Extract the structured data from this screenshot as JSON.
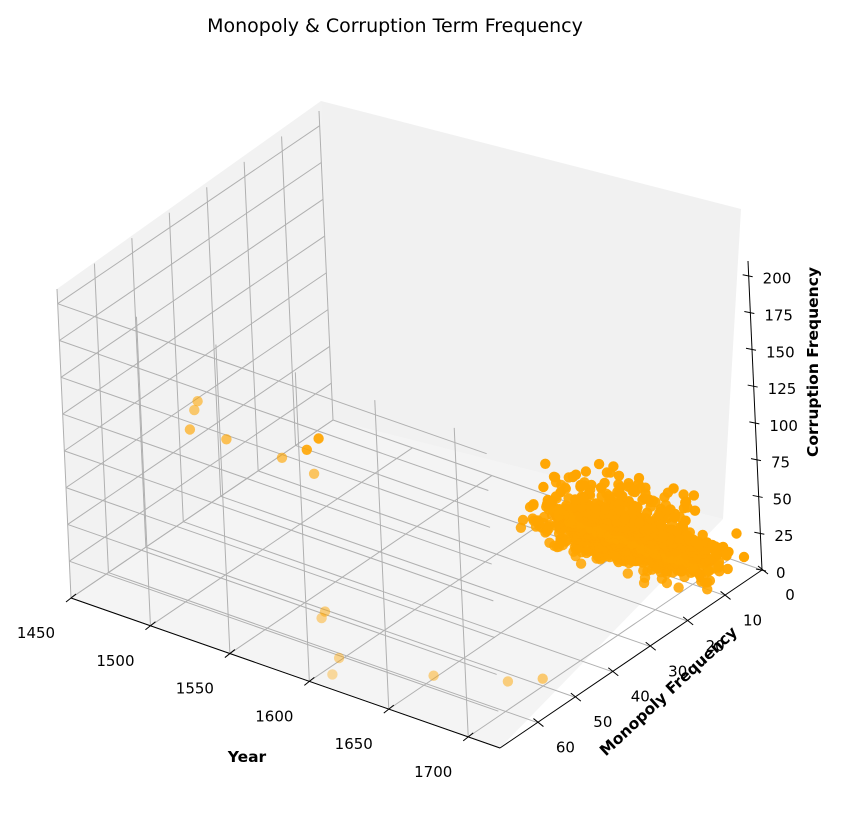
{
  "chart_data": {
    "type": "scatter",
    "projection": "3d",
    "title": "Monopoly & Corruption Term Frequency",
    "xlabel": "Year",
    "ylabel": "Monopoly Frequency",
    "zlabel": "Corruption Frequency",
    "xlim": [
      1450,
      1720
    ],
    "ylim": [
      0,
      70
    ],
    "zlim": [
      0,
      210
    ],
    "x_ticks": [
      1450,
      1500,
      1550,
      1600,
      1650,
      1700
    ],
    "y_ticks": [
      0,
      10,
      20,
      30,
      40,
      50,
      60
    ],
    "z_ticks": [
      0,
      25,
      50,
      75,
      100,
      125,
      150,
      175,
      200
    ],
    "grid": true,
    "marker_color": "#ffa500",
    "notable_points": [
      {
        "x": 1475,
        "y": 45,
        "z": 100
      },
      {
        "x": 1480,
        "y": 48,
        "z": 101
      },
      {
        "x": 1452,
        "y": 38,
        "z": 60
      },
      {
        "x": 1475,
        "y": 38,
        "z": 62
      },
      {
        "x": 1515,
        "y": 40,
        "z": 68
      },
      {
        "x": 1540,
        "y": 42,
        "z": 70
      },
      {
        "x": 1460,
        "y": 8,
        "z": 5
      },
      {
        "x": 1462,
        "y": 12,
        "z": 5
      },
      {
        "x": 1600,
        "y": 62,
        "z": 2
      },
      {
        "x": 1610,
        "y": 68,
        "z": 5
      },
      {
        "x": 1690,
        "y": 55,
        "z": 8
      },
      {
        "x": 1700,
        "y": 50,
        "z": 5
      },
      {
        "x": 1650,
        "y": 58,
        "z": 2
      },
      {
        "x": 1575,
        "y": 55,
        "z": 12
      },
      {
        "x": 1585,
        "y": 60,
        "z": 20
      }
    ],
    "bulk_distribution": {
      "n_points": 1400,
      "x_range": [
        1500,
        1710
      ],
      "x_mode": 1650,
      "y_range": [
        0,
        35
      ],
      "z_range": [
        0,
        40
      ],
      "z_typical": 3
    }
  }
}
